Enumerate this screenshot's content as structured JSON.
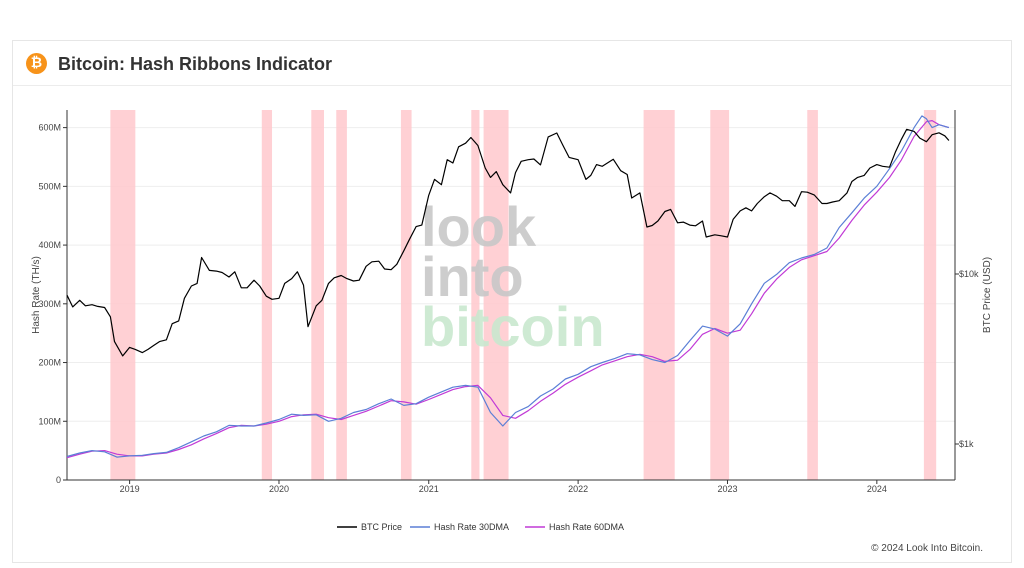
{
  "header": {
    "title": "Bitcoin: Hash Ribbons Indicator",
    "logo_glyph": "₿",
    "logo_color": "#f7931a"
  },
  "footer": {
    "copyright": "© 2024 Look Into Bitcoin."
  },
  "watermark": [
    "look",
    "into",
    "bitcoin"
  ],
  "chart_data": {
    "type": "line",
    "title": "Bitcoin: Hash Ribbons Indicator",
    "ylabel": "Hash Rate (TH/s)",
    "y2label": "BTC Price (USD)",
    "ylim": [
      0,
      630000000
    ],
    "y2_scale": "log",
    "y2_ticks": [
      {
        "value": 1000,
        "label": "$1k"
      },
      {
        "value": 10000,
        "label": "$10k"
      }
    ],
    "y_ticks": [
      {
        "value": 0,
        "label": "0"
      },
      {
        "value": 100000000,
        "label": "100M"
      },
      {
        "value": 200000000,
        "label": "200M"
      },
      {
        "value": 300000000,
        "label": "300M"
      },
      {
        "value": 400000000,
        "label": "400M"
      },
      {
        "value": 500000000,
        "label": "500M"
      },
      {
        "value": 600000000,
        "label": "600M"
      }
    ],
    "xlim": [
      "2018-08-01",
      "2024-07-10"
    ],
    "x_ticks": [
      {
        "value": "2019-01-01",
        "label": "2019"
      },
      {
        "value": "2020-01-01",
        "label": "2020"
      },
      {
        "value": "2021-01-01",
        "label": "2021"
      },
      {
        "value": "2022-01-01",
        "label": "2022"
      },
      {
        "value": "2023-01-01",
        "label": "2023"
      },
      {
        "value": "2024-01-01",
        "label": "2024"
      }
    ],
    "legend": [
      "BTC Price",
      "Hash Rate 30DMA",
      "Hash Rate 60DMA"
    ],
    "legend_position": "bottom-center",
    "colors": {
      "price": "#000000",
      "hr30": "#5b7fd6",
      "hr60": "#c13ad6",
      "capitulation": "#ffc8cc"
    },
    "capitulation_bands": [
      [
        "2018-11-15",
        "2019-01-15"
      ],
      [
        "2019-11-20",
        "2019-12-15"
      ],
      [
        "2020-03-20",
        "2020-04-20"
      ],
      [
        "2020-05-20",
        "2020-06-15"
      ],
      [
        "2020-10-25",
        "2020-11-20"
      ],
      [
        "2021-04-15",
        "2021-05-05"
      ],
      [
        "2021-05-15",
        "2021-07-15"
      ],
      [
        "2022-06-10",
        "2022-08-25"
      ],
      [
        "2022-11-20",
        "2023-01-05"
      ],
      [
        "2023-07-15",
        "2023-08-10"
      ],
      [
        "2024-04-25",
        "2024-05-25"
      ]
    ],
    "series": [
      {
        "name": "BTC Price",
        "axis": "right",
        "x": [
          "2018-08-01",
          "2018-08-15",
          "2018-09-01",
          "2018-09-15",
          "2018-10-01",
          "2018-10-15",
          "2018-11-01",
          "2018-11-15",
          "2018-11-25",
          "2018-12-15",
          "2019-01-01",
          "2019-01-15",
          "2019-02-01",
          "2019-02-15",
          "2019-03-01",
          "2019-03-15",
          "2019-04-01",
          "2019-04-15",
          "2019-05-01",
          "2019-05-15",
          "2019-06-01",
          "2019-06-15",
          "2019-06-26",
          "2019-07-15",
          "2019-08-01",
          "2019-08-15",
          "2019-09-01",
          "2019-09-15",
          "2019-10-01",
          "2019-10-15",
          "2019-11-01",
          "2019-11-15",
          "2019-12-01",
          "2019-12-15",
          "2020-01-01",
          "2020-01-15",
          "2020-02-01",
          "2020-02-15",
          "2020-03-01",
          "2020-03-12",
          "2020-04-01",
          "2020-04-15",
          "2020-05-01",
          "2020-05-15",
          "2020-06-01",
          "2020-06-15",
          "2020-07-01",
          "2020-07-15",
          "2020-08-01",
          "2020-08-15",
          "2020-09-01",
          "2020-09-15",
          "2020-10-01",
          "2020-10-15",
          "2020-11-01",
          "2020-11-15",
          "2020-12-01",
          "2020-12-15",
          "2021-01-01",
          "2021-01-15",
          "2021-02-01",
          "2021-02-15",
          "2021-03-01",
          "2021-03-15",
          "2021-04-01",
          "2021-04-14",
          "2021-05-01",
          "2021-05-19",
          "2021-06-01",
          "2021-06-15",
          "2021-07-01",
          "2021-07-20",
          "2021-08-01",
          "2021-08-15",
          "2021-09-01",
          "2021-09-15",
          "2021-10-01",
          "2021-10-20",
          "2021-11-10",
          "2021-11-25",
          "2021-12-10",
          "2022-01-01",
          "2022-01-20",
          "2022-02-01",
          "2022-02-15",
          "2022-03-01",
          "2022-03-28",
          "2022-04-15",
          "2022-05-01",
          "2022-05-12",
          "2022-06-01",
          "2022-06-18",
          "2022-07-01",
          "2022-07-15",
          "2022-08-01",
          "2022-08-15",
          "2022-09-01",
          "2022-09-15",
          "2022-10-01",
          "2022-10-15",
          "2022-11-01",
          "2022-11-10",
          "2022-12-01",
          "2022-12-15",
          "2023-01-01",
          "2023-01-15",
          "2023-02-01",
          "2023-02-15",
          "2023-03-01",
          "2023-03-15",
          "2023-04-01",
          "2023-04-15",
          "2023-05-01",
          "2023-05-15",
          "2023-06-01",
          "2023-06-15",
          "2023-07-01",
          "2023-07-15",
          "2023-08-01",
          "2023-08-20",
          "2023-09-01",
          "2023-09-15",
          "2023-10-01",
          "2023-10-20",
          "2023-11-01",
          "2023-11-15",
          "2023-12-01",
          "2023-12-15",
          "2024-01-01",
          "2024-01-15",
          "2024-02-01",
          "2024-02-15",
          "2024-03-01",
          "2024-03-14",
          "2024-04-01",
          "2024-04-15",
          "2024-05-01",
          "2024-05-15",
          "2024-06-01",
          "2024-06-15",
          "2024-06-25"
        ],
        "values": [
          7500,
          6400,
          7000,
          6500,
          6600,
          6450,
          6350,
          5600,
          4000,
          3300,
          3700,
          3600,
          3450,
          3600,
          3800,
          4000,
          4100,
          5100,
          5300,
          7200,
          8500,
          8800,
          12500,
          10500,
          10400,
          10200,
          9600,
          10300,
          8300,
          8300,
          9200,
          8500,
          7400,
          7100,
          7200,
          8800,
          9400,
          10300,
          8600,
          4900,
          6500,
          7000,
          8800,
          9500,
          9800,
          9400,
          9100,
          9200,
          11100,
          11800,
          11900,
          10700,
          10600,
          11400,
          13700,
          16000,
          19000,
          19400,
          29000,
          36000,
          33500,
          47000,
          45000,
          56000,
          58800,
          63500,
          57000,
          42000,
          37000,
          40000,
          33500,
          30000,
          39500,
          46000,
          47000,
          47500,
          43800,
          64000,
          67500,
          57000,
          48500,
          47000,
          36000,
          38000,
          44000,
          43000,
          47300,
          40500,
          38500,
          28000,
          30000,
          18900,
          19300,
          20500,
          23300,
          24000,
          20000,
          20200,
          19400,
          19200,
          20500,
          16500,
          17000,
          16800,
          16500,
          21000,
          23500,
          24500,
          23500,
          26000,
          28500,
          30000,
          28700,
          27000,
          27000,
          25000,
          30500,
          30300,
          29200,
          26000,
          26000,
          26500,
          27000,
          30000,
          35000,
          37000,
          38000,
          42000,
          44000,
          43000,
          42500,
          52000,
          62000,
          71000,
          69000,
          63000,
          60000,
          66000,
          67700,
          65000,
          61000
        ]
      },
      {
        "name": "Hash Rate 30DMA",
        "axis": "left",
        "x": [
          "2018-08-01",
          "2018-09-01",
          "2018-10-01",
          "2018-11-01",
          "2018-12-01",
          "2019-01-01",
          "2019-02-01",
          "2019-03-01",
          "2019-04-01",
          "2019-05-01",
          "2019-06-01",
          "2019-07-01",
          "2019-08-01",
          "2019-09-01",
          "2019-10-01",
          "2019-11-01",
          "2019-12-01",
          "2020-01-01",
          "2020-02-01",
          "2020-03-01",
          "2020-04-01",
          "2020-05-01",
          "2020-06-01",
          "2020-07-01",
          "2020-08-01",
          "2020-09-01",
          "2020-10-01",
          "2020-11-01",
          "2020-12-01",
          "2021-01-01",
          "2021-02-01",
          "2021-03-01",
          "2021-04-01",
          "2021-05-01",
          "2021-06-01",
          "2021-07-01",
          "2021-08-01",
          "2021-09-01",
          "2021-10-01",
          "2021-11-01",
          "2021-12-01",
          "2022-01-01",
          "2022-02-01",
          "2022-03-01",
          "2022-04-01",
          "2022-05-01",
          "2022-06-01",
          "2022-07-01",
          "2022-08-01",
          "2022-09-01",
          "2022-10-01",
          "2022-11-01",
          "2022-12-01",
          "2023-01-01",
          "2023-02-01",
          "2023-03-01",
          "2023-04-01",
          "2023-05-01",
          "2023-06-01",
          "2023-07-01",
          "2023-08-01",
          "2023-09-01",
          "2023-10-01",
          "2023-11-01",
          "2023-12-01",
          "2024-01-01",
          "2024-02-01",
          "2024-03-01",
          "2024-04-01",
          "2024-04-20",
          "2024-05-01",
          "2024-05-15",
          "2024-06-01",
          "2024-06-25"
        ],
        "values": [
          40000000,
          46000000,
          50000000,
          48000000,
          39000000,
          41000000,
          42000000,
          45000000,
          47000000,
          55000000,
          65000000,
          75000000,
          82000000,
          93000000,
          92000000,
          92000000,
          97000000,
          103000000,
          112000000,
          110000000,
          111000000,
          100000000,
          105000000,
          115000000,
          120000000,
          130000000,
          138000000,
          127000000,
          130000000,
          141000000,
          150000000,
          158000000,
          161000000,
          158000000,
          115000000,
          92000000,
          115000000,
          125000000,
          143000000,
          155000000,
          172000000,
          180000000,
          193000000,
          200000000,
          207000000,
          215000000,
          213000000,
          205000000,
          200000000,
          212000000,
          237000000,
          262000000,
          257000000,
          245000000,
          266000000,
          300000000,
          335000000,
          350000000,
          370000000,
          378000000,
          384000000,
          395000000,
          430000000,
          455000000,
          480000000,
          500000000,
          530000000,
          560000000,
          600000000,
          620000000,
          615000000,
          600000000,
          605000000,
          600000000
        ]
      },
      {
        "name": "Hash Rate 60DMA",
        "axis": "left",
        "x": [
          "2018-08-01",
          "2018-09-01",
          "2018-10-01",
          "2018-11-01",
          "2018-12-01",
          "2019-01-01",
          "2019-02-01",
          "2019-03-01",
          "2019-04-01",
          "2019-05-01",
          "2019-06-01",
          "2019-07-01",
          "2019-08-01",
          "2019-09-01",
          "2019-10-01",
          "2019-11-01",
          "2019-12-01",
          "2020-01-01",
          "2020-02-01",
          "2020-03-01",
          "2020-04-01",
          "2020-05-01",
          "2020-06-01",
          "2020-07-01",
          "2020-08-01",
          "2020-09-01",
          "2020-10-01",
          "2020-11-01",
          "2020-12-01",
          "2021-01-01",
          "2021-02-01",
          "2021-03-01",
          "2021-04-01",
          "2021-05-01",
          "2021-06-01",
          "2021-07-01",
          "2021-08-01",
          "2021-09-01",
          "2021-10-01",
          "2021-11-01",
          "2021-12-01",
          "2022-01-01",
          "2022-02-01",
          "2022-03-01",
          "2022-04-01",
          "2022-05-01",
          "2022-06-01",
          "2022-07-01",
          "2022-08-01",
          "2022-09-01",
          "2022-10-01",
          "2022-11-01",
          "2022-12-01",
          "2023-01-01",
          "2023-02-01",
          "2023-03-01",
          "2023-04-01",
          "2023-05-01",
          "2023-06-01",
          "2023-07-01",
          "2023-08-01",
          "2023-09-01",
          "2023-10-01",
          "2023-11-01",
          "2023-12-01",
          "2024-01-01",
          "2024-02-01",
          "2024-03-01",
          "2024-04-01",
          "2024-05-01",
          "2024-05-15",
          "2024-06-01",
          "2024-06-25"
        ],
        "values": [
          38000000,
          44000000,
          49000000,
          50000000,
          44000000,
          41000000,
          41000000,
          44000000,
          46000000,
          52000000,
          60000000,
          70000000,
          79000000,
          89000000,
          93000000,
          92000000,
          95000000,
          100000000,
          108000000,
          111000000,
          112000000,
          106000000,
          103000000,
          110000000,
          117000000,
          126000000,
          135000000,
          133000000,
          129000000,
          137000000,
          146000000,
          154000000,
          159000000,
          161000000,
          140000000,
          110000000,
          105000000,
          118000000,
          134000000,
          148000000,
          163000000,
          175000000,
          186000000,
          196000000,
          203000000,
          210000000,
          214000000,
          210000000,
          202000000,
          204000000,
          222000000,
          248000000,
          258000000,
          250000000,
          255000000,
          283000000,
          318000000,
          342000000,
          362000000,
          375000000,
          382000000,
          389000000,
          412000000,
          442000000,
          468000000,
          490000000,
          515000000,
          545000000,
          585000000,
          610000000,
          612000000,
          605000000,
          600000000
        ]
      }
    ]
  }
}
